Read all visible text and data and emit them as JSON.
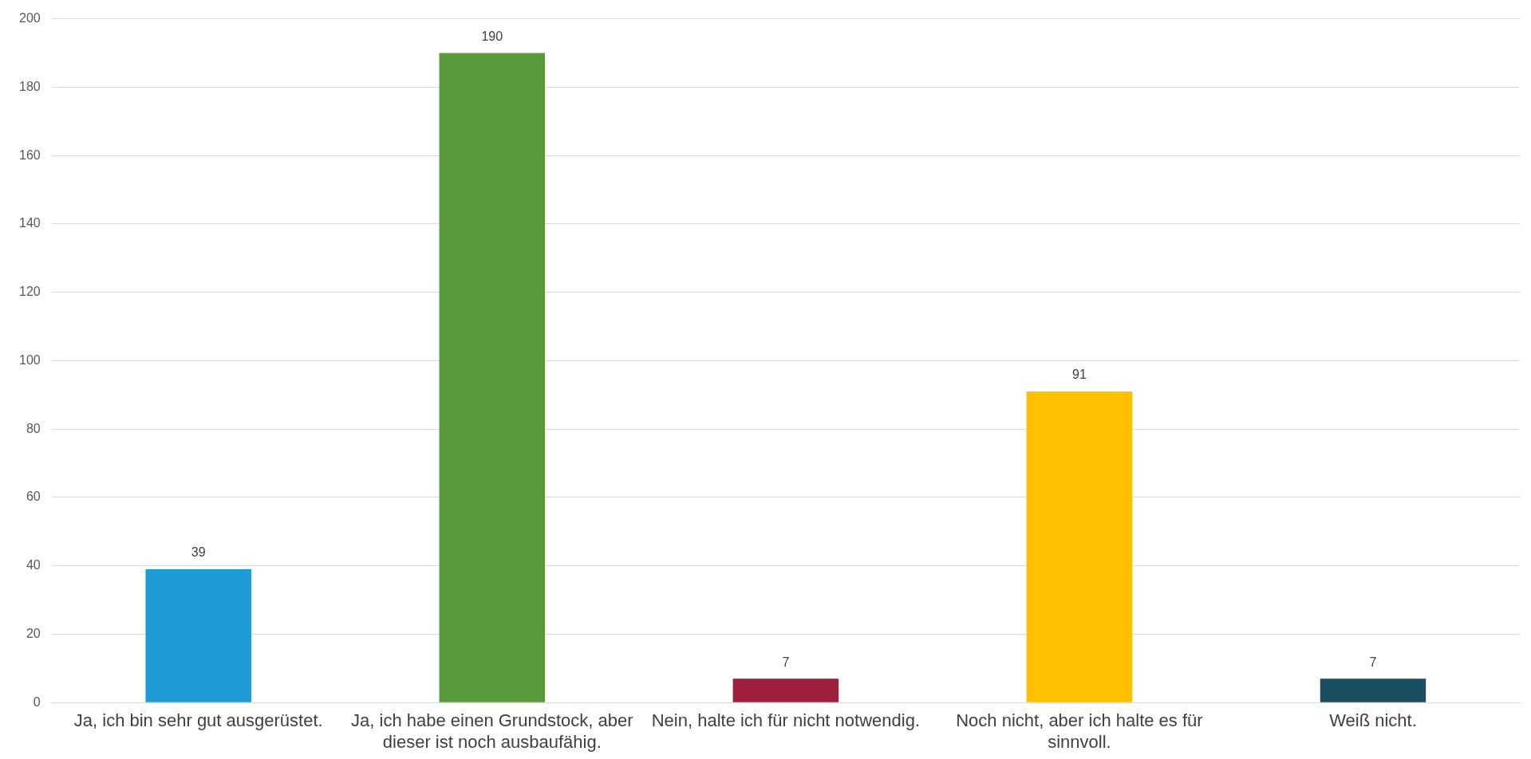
{
  "chart_data": {
    "type": "bar",
    "categories": [
      "Ja, ich bin sehr gut ausgerüstet.",
      "Ja, ich habe einen Grundstock, aber dieser ist noch ausbaufähig.",
      "Nein, halte ich für nicht notwendig.",
      "Noch nicht, aber ich halte es für sinnvoll.",
      "Weiß nicht."
    ],
    "values": [
      39,
      190,
      7,
      91,
      7
    ],
    "colors": [
      "#1f9bd7",
      "#589a3c",
      "#9e1f3c",
      "#ffc000",
      "#1b4e60"
    ],
    "ylim": [
      0,
      200
    ],
    "yticks": [
      0,
      20,
      40,
      60,
      80,
      100,
      120,
      140,
      160,
      180,
      200
    ],
    "grid": "y",
    "data_labels": true
  }
}
